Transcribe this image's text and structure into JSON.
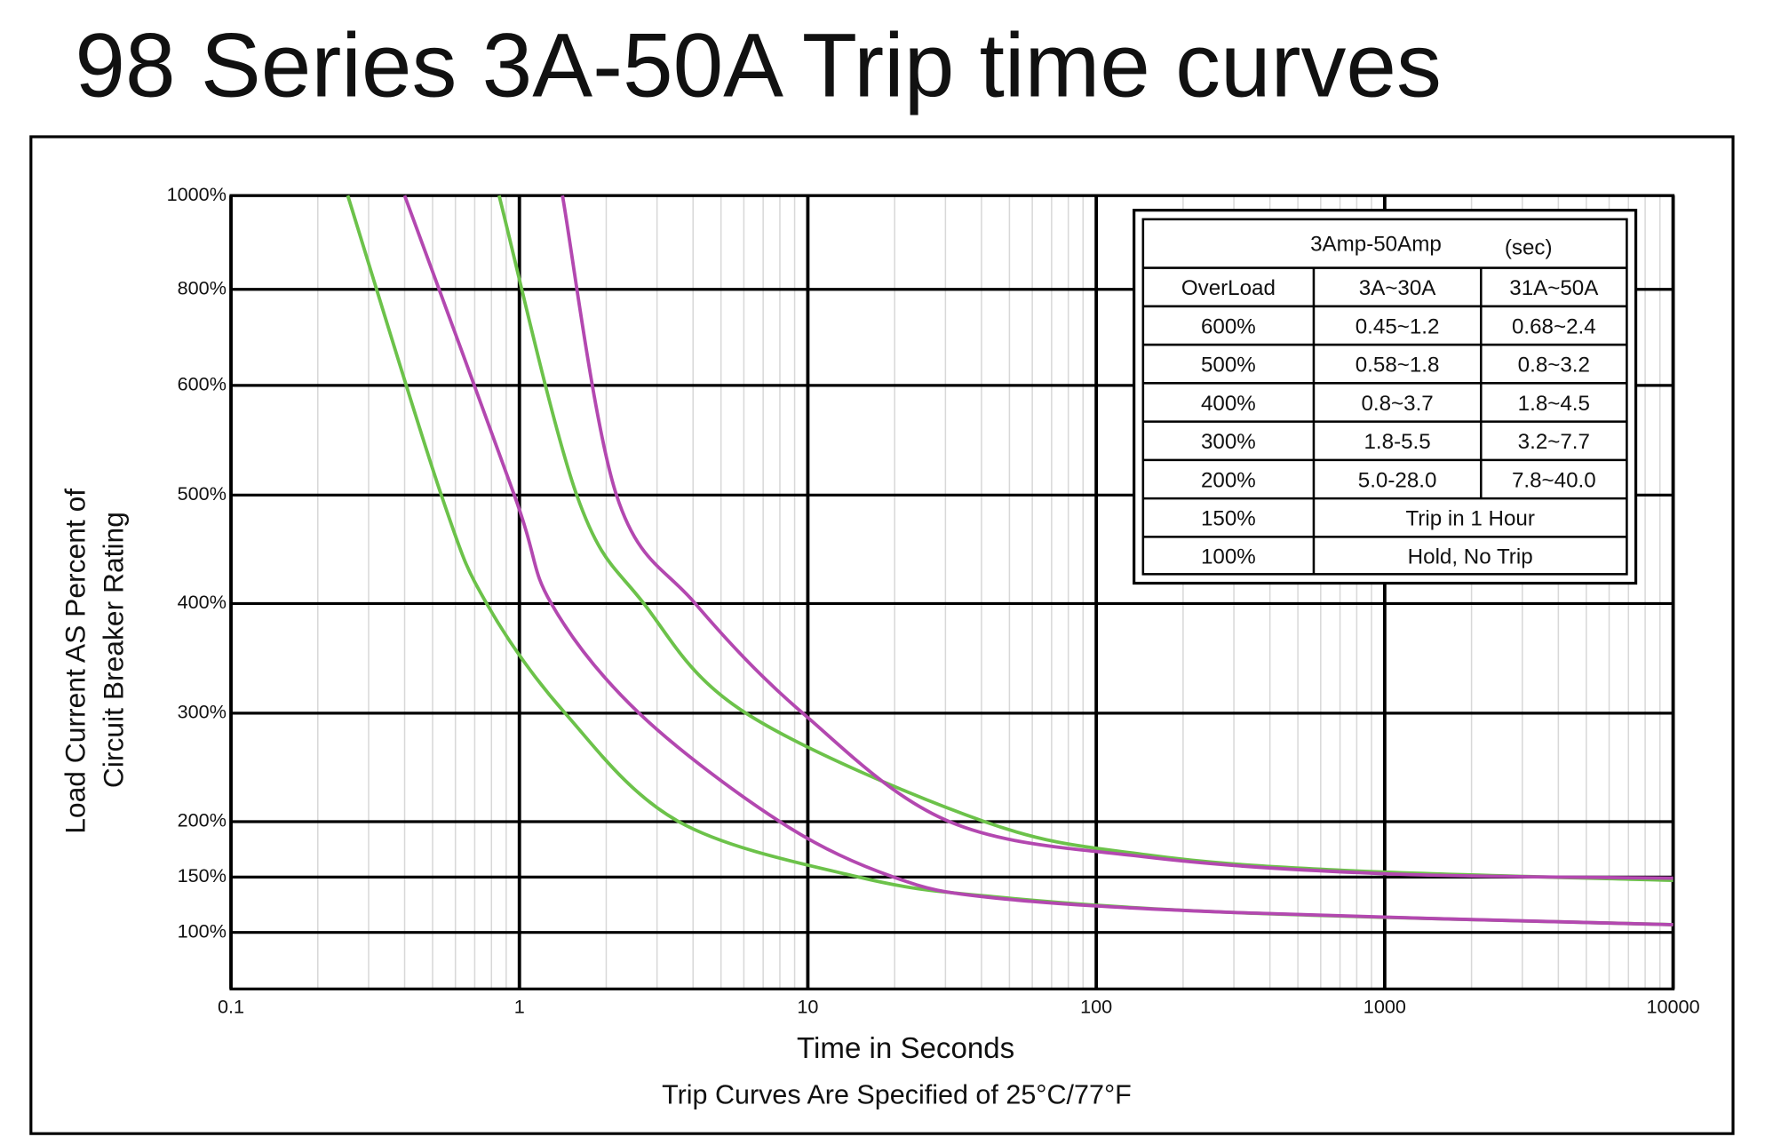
{
  "chart_data": {
    "type": "line",
    "title": "98 Series 3A-50A Trip time curves",
    "xlabel": "Time in Seconds",
    "note": "Trip Curves Are Specified of 25°C/77°F",
    "ylabel": [
      "Load Current AS Percent of",
      "Circuit Breaker Rating"
    ],
    "xscale": "log",
    "xlim": [
      0.1,
      10000
    ],
    "xticks": [
      0.1,
      1,
      10,
      100,
      1000,
      10000
    ],
    "ylim": [
      50,
      1000
    ],
    "yticks": [
      {
        "value": 1000,
        "label": "1000%"
      },
      {
        "value": 800,
        "label": "800%"
      },
      {
        "value": 600,
        "label": "600%"
      },
      {
        "value": 500,
        "label": "500%"
      },
      {
        "value": 400,
        "label": "400%"
      },
      {
        "value": 300,
        "label": "300%"
      },
      {
        "value": 200,
        "label": "200%"
      },
      {
        "value": 150,
        "label": "150%"
      },
      {
        "value": 100,
        "label": "100%"
      }
    ],
    "grid": true,
    "series": [
      {
        "color": "#6cc24a",
        "x": [
          0.254,
          0.536,
          0.77,
          1.44,
          3.57,
          15,
          45,
          300,
          10000
        ],
        "values": [
          1000,
          500,
          400,
          300,
          200,
          150,
          132,
          118,
          107
        ]
      },
      {
        "color": "#b348b0",
        "x": [
          0.4,
          0.96,
          1.29,
          2.6,
          8,
          19.8,
          45,
          300,
          10000
        ],
        "values": [
          1000,
          500,
          400,
          300,
          200,
          150,
          131,
          118,
          107
        ]
      },
      {
        "color": "#6cc24a",
        "x": [
          0.85,
          1.58,
          2.7,
          6.1,
          41,
          150,
          724,
          10000
        ],
        "values": [
          1000,
          500,
          400,
          300,
          200,
          170,
          156,
          147
        ]
      },
      {
        "color": "#b348b0",
        "x": [
          1.41,
          2.17,
          4.07,
          9.6,
          31,
          150,
          1000,
          10000
        ],
        "values": [
          1000,
          500,
          400,
          300,
          200,
          168,
          153,
          149
        ]
      }
    ],
    "table": {
      "title": "3Amp-50Amp",
      "unit": "(sec)",
      "header": [
        "OverLoad",
        "3A~30A",
        "31A~50A"
      ],
      "rows": [
        [
          "600%",
          "0.45~1.2",
          "0.68~2.4"
        ],
        [
          "500%",
          "0.58~1.8",
          "0.8~3.2"
        ],
        [
          "400%",
          "0.8~3.7",
          "1.8~4.5"
        ],
        [
          "300%",
          "1.8-5.5",
          "3.2~7.7"
        ],
        [
          "200%",
          "5.0-28.0",
          "7.8~40.0"
        ],
        [
          "150%",
          "Trip in 1 Hour"
        ],
        [
          "100%",
          "Hold, No Trip"
        ]
      ]
    }
  }
}
